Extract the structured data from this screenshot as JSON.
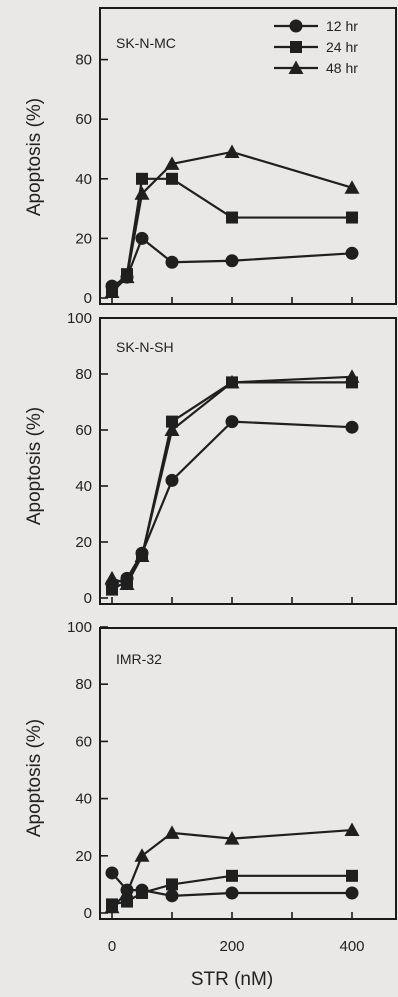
{
  "chart_data": [
    {
      "type": "line",
      "title": "SK-N-MC",
      "ylabel": "Apoptosis (%)",
      "xlabel": "",
      "ylim": [
        0,
        100
      ],
      "yticks": [
        0,
        20,
        40,
        60,
        80
      ],
      "x": [
        0,
        25,
        50,
        100,
        200,
        400
      ],
      "legend": [
        "12 hr",
        "24 hr",
        "48 hr"
      ],
      "series": [
        {
          "name": "12 hr",
          "marker": "circle",
          "values": [
            4,
            7,
            20,
            12,
            12.5,
            15
          ]
        },
        {
          "name": "24 hr",
          "marker": "square",
          "values": [
            3,
            8,
            40,
            40,
            27,
            27
          ]
        },
        {
          "name": "48 hr",
          "marker": "triangle",
          "values": [
            2,
            7,
            35,
            45,
            49,
            37
          ]
        }
      ]
    },
    {
      "type": "line",
      "title": "SK-N-SH",
      "ylabel": "Apoptosis (%)",
      "xlabel": "",
      "ylim": [
        0,
        100
      ],
      "yticks": [
        0,
        20,
        40,
        60,
        80,
        100
      ],
      "x": [
        0,
        25,
        50,
        100,
        200,
        400
      ],
      "series": [
        {
          "name": "12 hr",
          "marker": "circle",
          "values": [
            5,
            7,
            16,
            42,
            63,
            61
          ]
        },
        {
          "name": "24 hr",
          "marker": "square",
          "values": [
            3,
            6,
            15,
            63,
            77,
            77
          ]
        },
        {
          "name": "48 hr",
          "marker": "triangle",
          "values": [
            7,
            5,
            15,
            60,
            77,
            79
          ]
        }
      ]
    },
    {
      "type": "line",
      "title": "IMR-32",
      "ylabel": "Apoptosis (%)",
      "xlabel": "STR (nM)",
      "ylim": [
        0,
        100
      ],
      "yticks": [
        0,
        20,
        40,
        60,
        80,
        100
      ],
      "x": [
        0,
        25,
        50,
        100,
        200,
        400
      ],
      "xticks": [
        0,
        200,
        400
      ],
      "series": [
        {
          "name": "12 hr",
          "marker": "circle",
          "values": [
            14,
            8,
            8,
            6,
            7,
            7
          ]
        },
        {
          "name": "24 hr",
          "marker": "square",
          "values": [
            3,
            4,
            7,
            10,
            13,
            13
          ]
        },
        {
          "name": "48 hr",
          "marker": "triangle",
          "values": [
            2,
            7,
            20,
            28,
            26,
            29
          ]
        }
      ]
    }
  ]
}
